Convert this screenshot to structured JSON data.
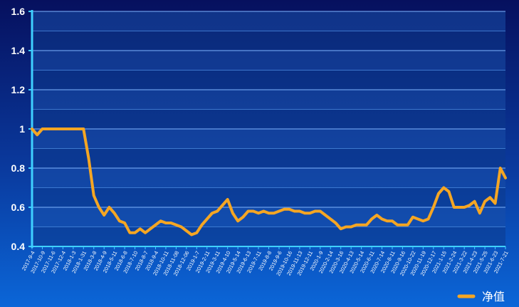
{
  "chart_data": {
    "type": "line",
    "categories": [
      "2017-9-4",
      null,
      "2017-10-9",
      null,
      "2017-11-6",
      null,
      "2017-12-4",
      null,
      "2018-1-3",
      null,
      "2018-1-31",
      null,
      "2018-3-8",
      null,
      "2018-4-9",
      null,
      "2018-5-11",
      null,
      "2018-6-8",
      null,
      "2018-7-10",
      null,
      "2018-8-7",
      null,
      "2018-9-4",
      null,
      "2018-10-11",
      null,
      "2018-11-08",
      null,
      "2018-12-06",
      null,
      "2019-1-7",
      null,
      "2019-2-11",
      null,
      "2019-3-11",
      null,
      "2019-4-10",
      null,
      "2019-5-14",
      null,
      "2019-6-13",
      null,
      "2019-7-11",
      null,
      "2019-8-8",
      null,
      "2019-9-6",
      null,
      "2019-10-16",
      null,
      "2019-11-13",
      null,
      "2019-12-11",
      null,
      "2020-1-9",
      null,
      "2020-2-14",
      null,
      "2020-3-16",
      null,
      "2020-4-13",
      null,
      "2020-5-14",
      null,
      "2020-6-11",
      null,
      "2020-7-14",
      null,
      "2020-8-11",
      null,
      "2020-9-16",
      null,
      "2020-10-22",
      null,
      "2020-11-19",
      null,
      "2020-12-17",
      null,
      "2021-1-15",
      null,
      "2021-2-24",
      null,
      "2021-3-22",
      null,
      "2021-4-23",
      null,
      "2021-5-25",
      null,
      "2021-6-23",
      null,
      "2021-7-21"
    ],
    "series": [
      {
        "name": "净值",
        "color": "#f5a623",
        "values": [
          1,
          0.97,
          1,
          1,
          1,
          1,
          1,
          1,
          1,
          1,
          1,
          0.85,
          0.66,
          0.6,
          0.56,
          0.6,
          0.57,
          0.53,
          0.52,
          0.47,
          0.47,
          0.49,
          0.47,
          0.49,
          0.51,
          0.53,
          0.52,
          0.52,
          0.51,
          0.5,
          0.48,
          0.46,
          0.47,
          0.51,
          0.54,
          0.57,
          0.58,
          0.61,
          0.64,
          0.57,
          0.53,
          0.55,
          0.58,
          0.58,
          0.57,
          0.58,
          0.57,
          0.57,
          0.58,
          0.59,
          0.59,
          0.58,
          0.58,
          0.57,
          0.57,
          0.58,
          0.58,
          0.56,
          0.54,
          0.52,
          0.49,
          0.5,
          0.5,
          0.51,
          0.51,
          0.51,
          0.54,
          0.56,
          0.54,
          0.53,
          0.53,
          0.51,
          0.51,
          0.51,
          0.55,
          0.54,
          0.53,
          0.54,
          0.6,
          0.67,
          0.7,
          0.68,
          0.6,
          0.6,
          0.6,
          0.61,
          0.63,
          0.57,
          0.63,
          0.65,
          0.62,
          0.8,
          0.75
        ]
      }
    ],
    "ylim": [
      0.4,
      1.6
    ],
    "yticks": [
      0.4,
      0.6,
      0.8,
      1,
      1.2,
      1.4,
      1.6
    ],
    "grid": true,
    "legend": "bottom-right"
  }
}
